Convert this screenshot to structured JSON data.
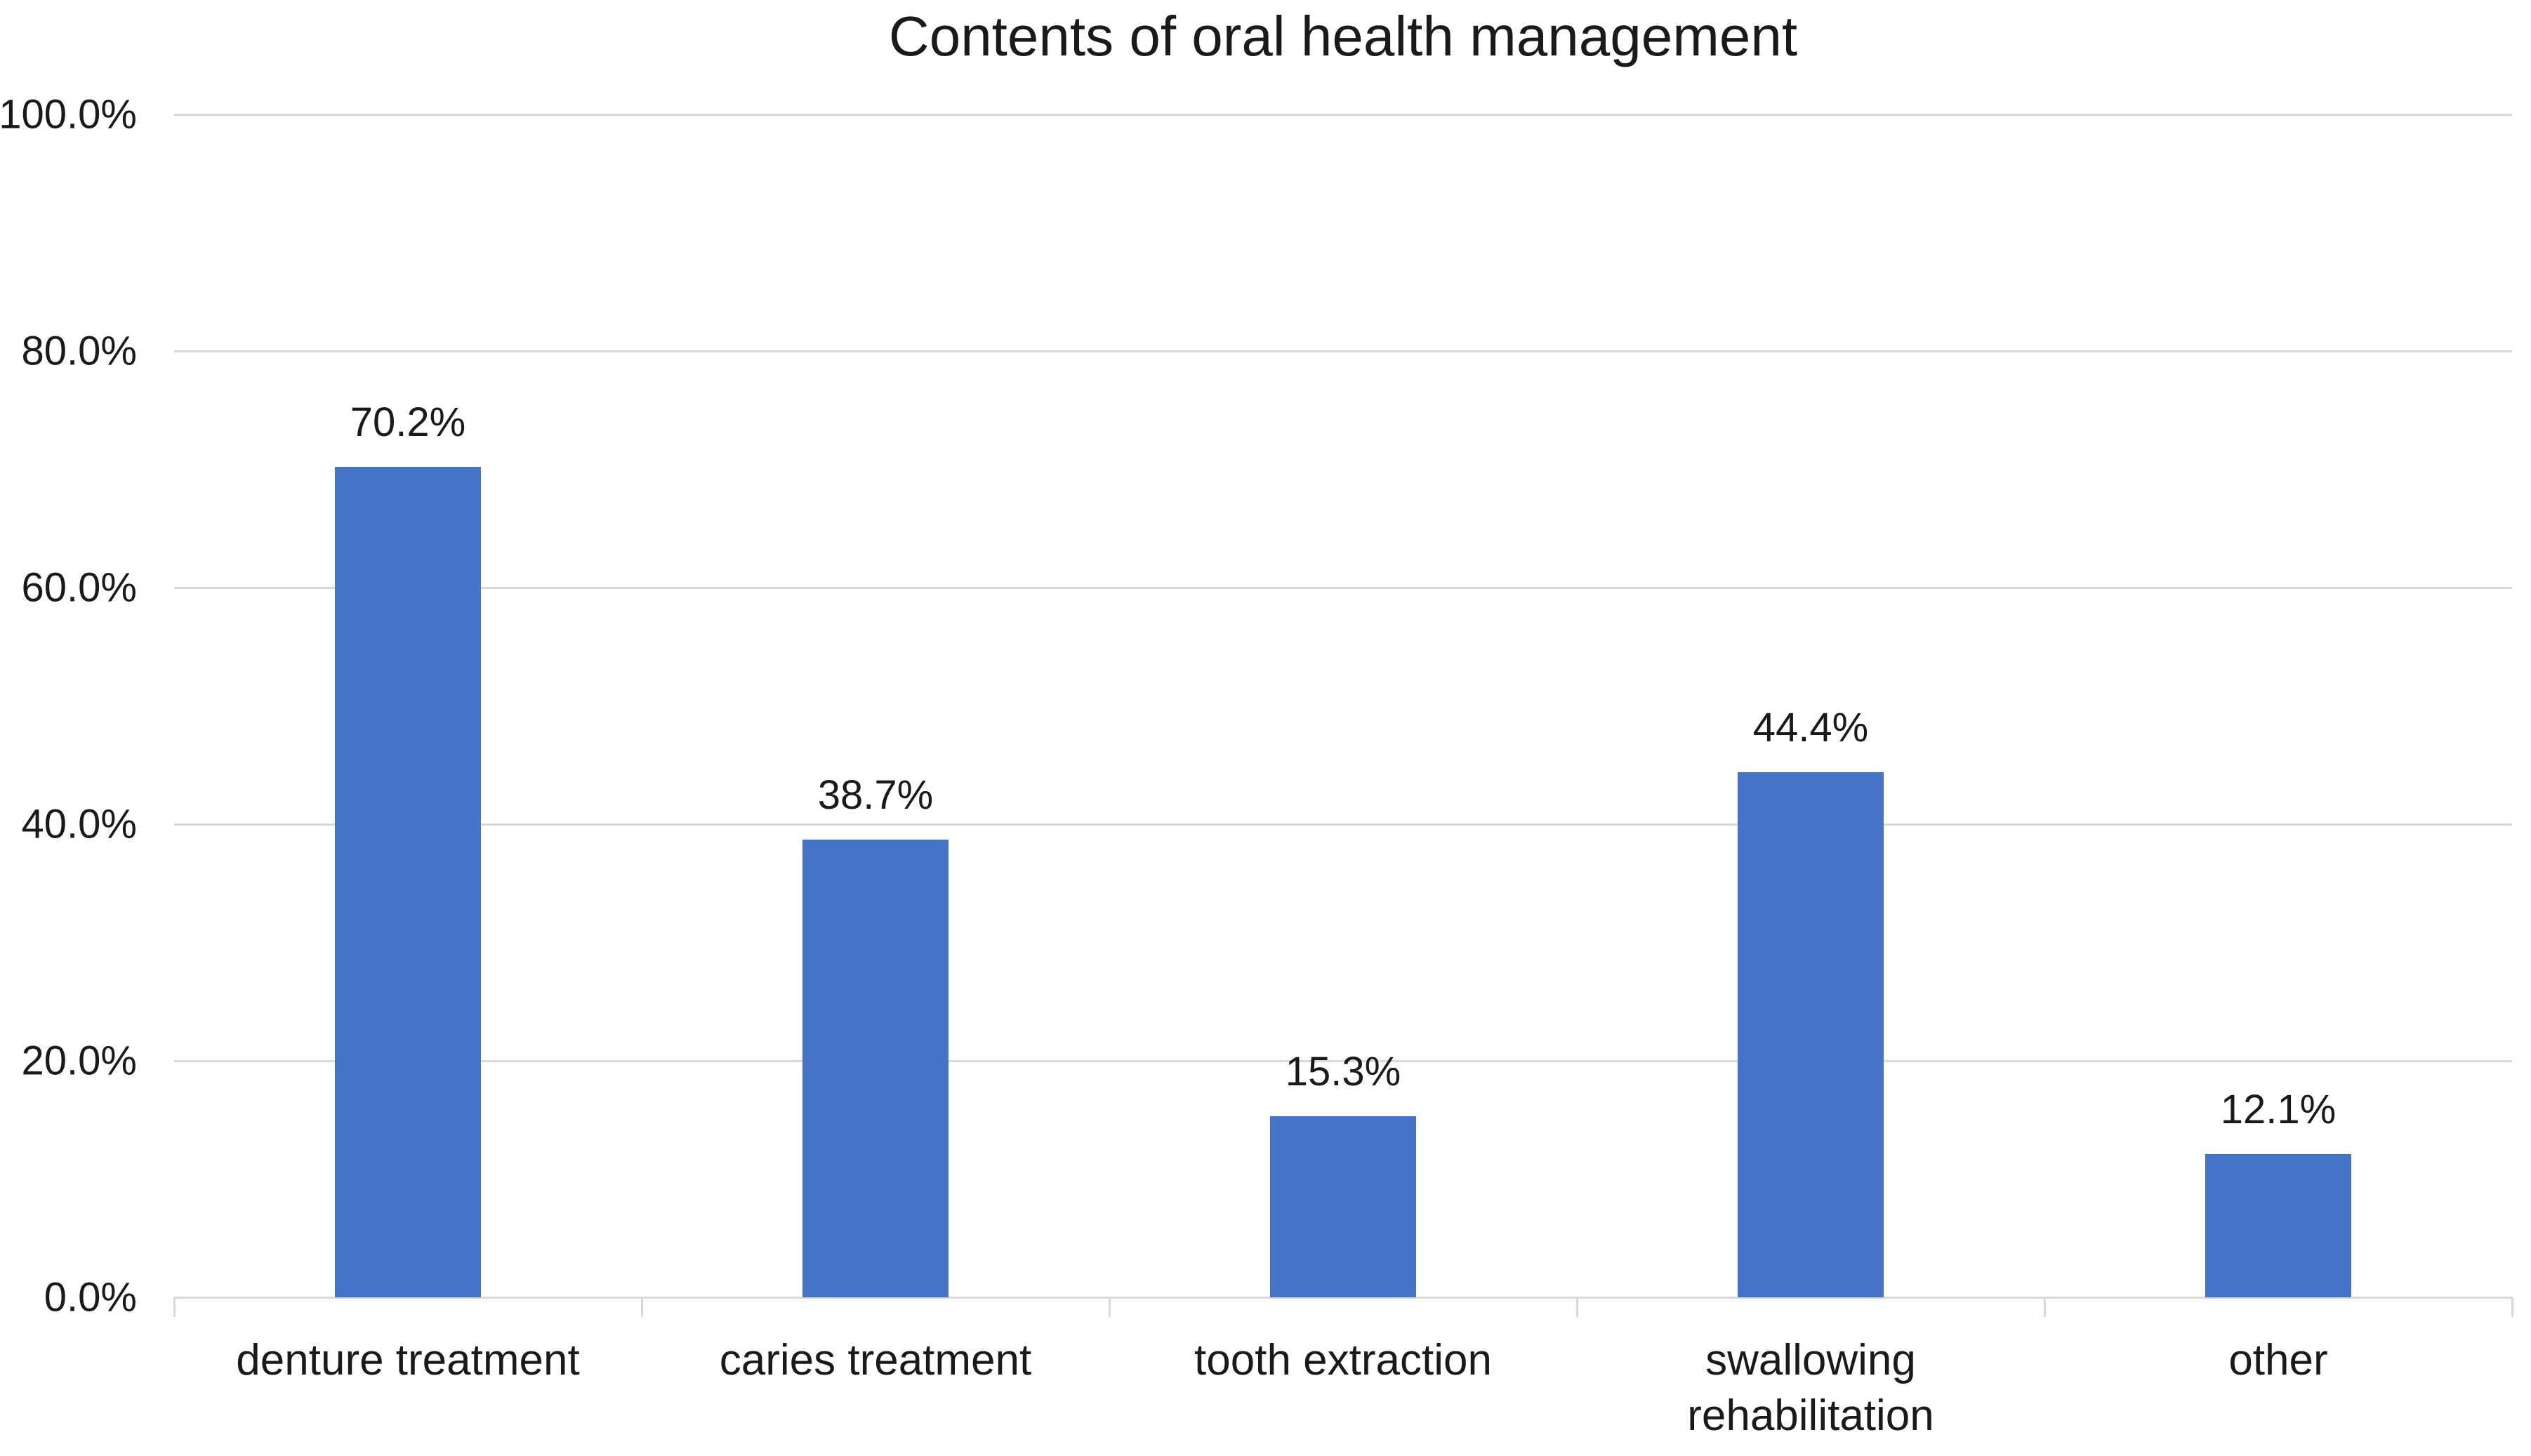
{
  "chart_data": {
    "type": "bar",
    "title": "Contents of oral health management",
    "categories": [
      "denture treatment",
      "caries treatment",
      "tooth extraction",
      "swallowing rehabilitation",
      "other"
    ],
    "values": [
      70.2,
      38.7,
      15.3,
      44.4,
      12.1
    ],
    "value_labels": [
      "70.2%",
      "38.7%",
      "15.3%",
      "44.4%",
      "12.1%"
    ],
    "xlabel": "",
    "ylabel": "",
    "ylim": [
      0,
      100
    ],
    "yticks": [
      {
        "value": 0,
        "label": "0.0%"
      },
      {
        "value": 20,
        "label": "20.0%"
      },
      {
        "value": 40,
        "label": "40.0%"
      },
      {
        "value": 60,
        "label": "60.0%"
      },
      {
        "value": 80,
        "label": "80.0%"
      },
      {
        "value": 100,
        "label": "100.0%"
      }
    ],
    "grid": true,
    "legend": false,
    "bar_color": "#4473c7",
    "gridline_color": "#d9d9d9",
    "text_color": "#1a1a1a"
  }
}
